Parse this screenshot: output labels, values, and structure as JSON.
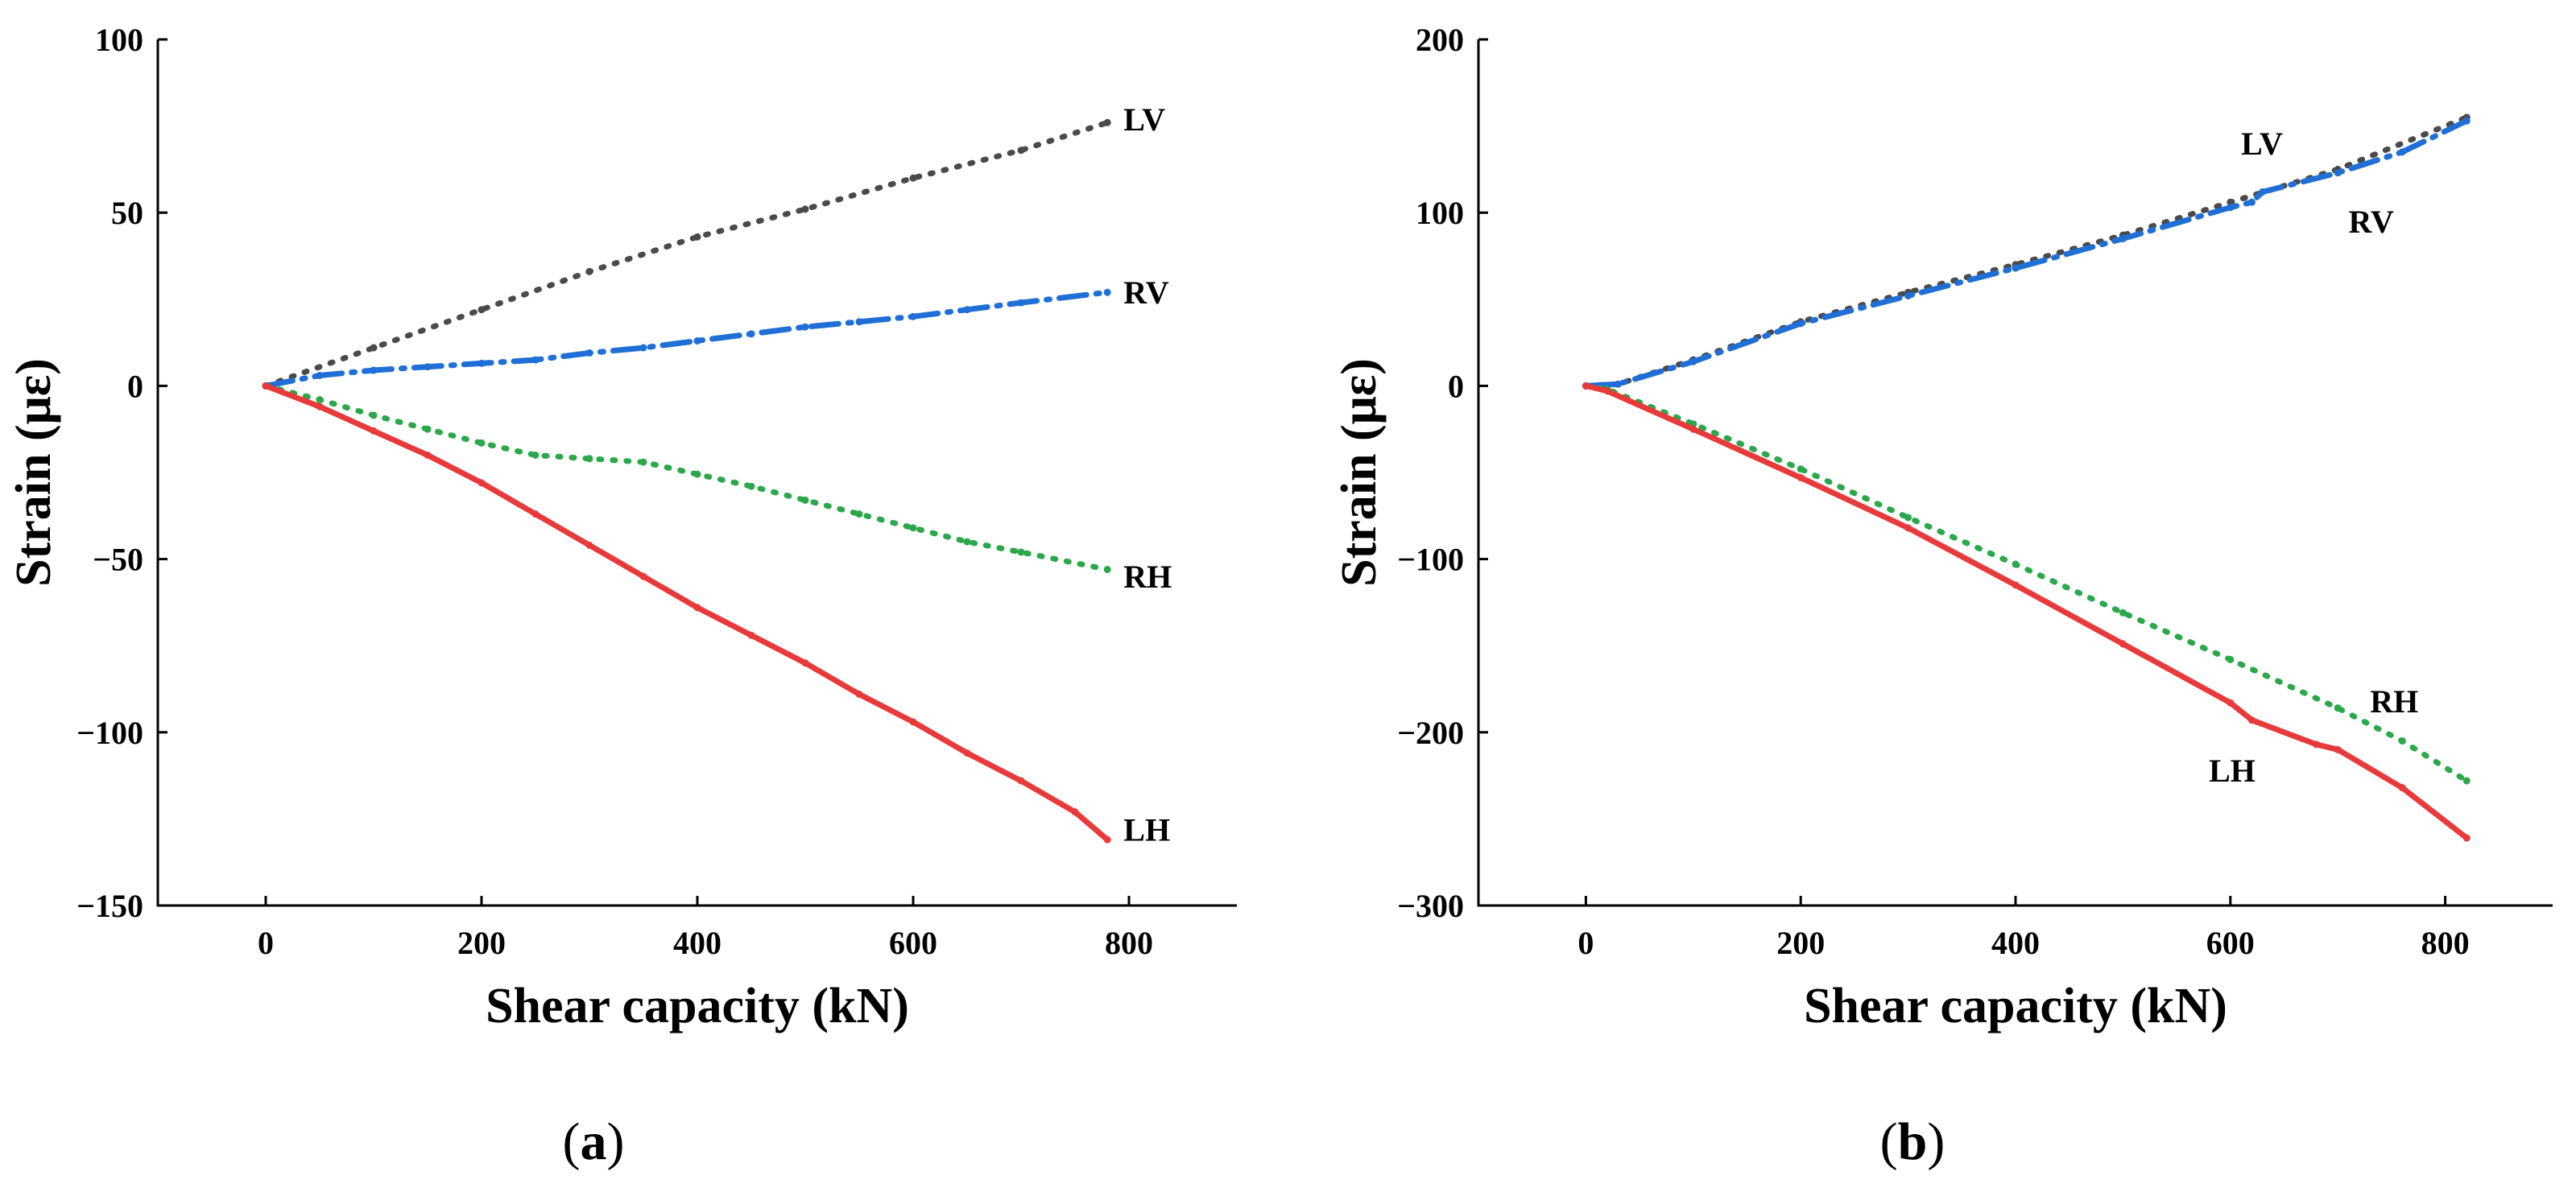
{
  "chart_data": [
    {
      "type": "line",
      "panel_label": "(a)",
      "panel_letter": "a",
      "xlabel": "Shear capacity (kN)",
      "ylabel": "Strain (με)",
      "xlim": [
        -100,
        900
      ],
      "ylim": [
        -150,
        100
      ],
      "xticks": [
        0,
        200,
        400,
        600,
        800
      ],
      "yticks": [
        -150,
        -100,
        -50,
        0,
        50,
        100
      ],
      "grid": false,
      "series": [
        {
          "name": "LV",
          "color": "#4a4a4a",
          "style": "dot",
          "x": [
            0,
            100,
            200,
            300,
            400,
            500,
            600,
            700,
            780
          ],
          "y": [
            0,
            11,
            22,
            33,
            43,
            51,
            60,
            68,
            76
          ]
        },
        {
          "name": "RV",
          "color": "#1f6fd6",
          "style": "dashdot",
          "x": [
            0,
            50,
            100,
            150,
            200,
            250,
            300,
            350,
            400,
            450,
            500,
            550,
            600,
            650,
            700,
            780
          ],
          "y": [
            0,
            3,
            4.5,
            5.5,
            6.5,
            7.5,
            9.5,
            11,
            13,
            15,
            17,
            18.5,
            20,
            22,
            24,
            27
          ]
        },
        {
          "name": "RH",
          "color": "#2aa84a",
          "style": "dot",
          "x": [
            0,
            50,
            100,
            150,
            200,
            250,
            300,
            350,
            400,
            450,
            500,
            550,
            600,
            650,
            700,
            780
          ],
          "y": [
            0,
            -4,
            -8.5,
            -12.5,
            -16.5,
            -20,
            -21,
            -22,
            -25.5,
            -29,
            -33,
            -37,
            -41,
            -45,
            -48,
            -53
          ]
        },
        {
          "name": "LH",
          "color": "#e83a3a",
          "style": "solid",
          "x": [
            0,
            50,
            100,
            150,
            200,
            250,
            300,
            350,
            400,
            450,
            500,
            550,
            600,
            650,
            700,
            750,
            780
          ],
          "y": [
            0,
            -6,
            -13,
            -20,
            -28,
            -37,
            -46,
            -55,
            -64,
            -72,
            -80,
            -89,
            -97,
            -106,
            -114,
            -123,
            -131
          ]
        }
      ],
      "annotations": [
        {
          "text": "LV",
          "x": 795,
          "y": 77
        },
        {
          "text": "RV",
          "x": 795,
          "y": 27
        },
        {
          "text": "RH",
          "x": 795,
          "y": -55
        },
        {
          "text": "LH",
          "x": 795,
          "y": -128
        }
      ]
    },
    {
      "type": "line",
      "panel_label": "(b)",
      "panel_letter": "b",
      "xlabel": "Shear capacity (kN)",
      "ylabel": "Strain (με)",
      "xlim": [
        -100,
        900
      ],
      "ylim": [
        -300,
        200
      ],
      "xticks": [
        0,
        200,
        400,
        600,
        800
      ],
      "yticks": [
        -300,
        -200,
        -100,
        0,
        100,
        200
      ],
      "grid": false,
      "series": [
        {
          "name": "LV",
          "color": "#4a4a4a",
          "style": "dot",
          "x": [
            0,
            30,
            100,
            200,
            300,
            400,
            500,
            600,
            700,
            820
          ],
          "y": [
            0,
            1,
            15,
            37,
            54,
            70,
            87,
            106,
            125,
            155
          ]
        },
        {
          "name": "RV",
          "color": "#1f6fd6",
          "style": "dashdot",
          "x": [
            0,
            30,
            100,
            200,
            300,
            400,
            500,
            600,
            620,
            630,
            700,
            760,
            820
          ],
          "y": [
            0,
            1,
            14,
            36,
            52,
            68,
            85,
            103,
            106,
            112,
            123,
            135,
            153
          ]
        },
        {
          "name": "RH",
          "color": "#2aa84a",
          "style": "dot",
          "x": [
            0,
            20,
            100,
            200,
            300,
            400,
            500,
            600,
            700,
            760,
            820
          ],
          "y": [
            0,
            -2,
            -22,
            -48,
            -76,
            -103,
            -131,
            -158,
            -186,
            -205,
            -228
          ]
        },
        {
          "name": "LH",
          "color": "#e83a3a",
          "style": "solid",
          "x": [
            0,
            20,
            100,
            200,
            300,
            400,
            500,
            600,
            620,
            680,
            700,
            760,
            820
          ],
          "y": [
            0,
            -3,
            -25,
            -53,
            -82,
            -115,
            -149,
            -183,
            -193,
            -207,
            -210,
            -232,
            -261
          ]
        }
      ],
      "annotations": [
        {
          "text": "LV",
          "x": 610,
          "y": 140
        },
        {
          "text": "RV",
          "x": 710,
          "y": 95
        },
        {
          "text": "RH",
          "x": 730,
          "y": -182
        },
        {
          "text": "LH",
          "x": 580,
          "y": -222
        }
      ]
    }
  ]
}
